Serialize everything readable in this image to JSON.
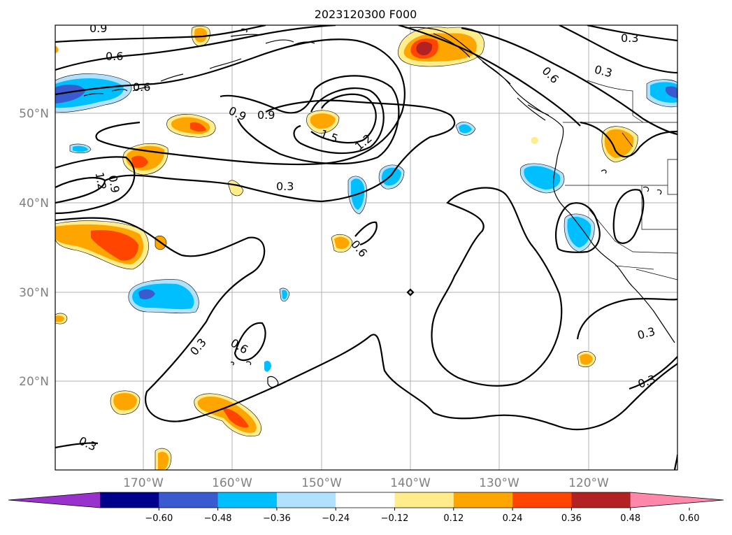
{
  "title": "2023120300 F000",
  "latitude_labels": [
    "20°N",
    "30°N",
    "40°N",
    "50°N"
  ],
  "longitude_labels": [
    "170°W",
    "160°W",
    "150°W",
    "140°W",
    "130°W",
    "120°W"
  ],
  "contour_labels": [
    "0.9",
    "0.6",
    "0.6",
    "0.9",
    "0.9",
    "1.5",
    "1.2",
    "0.9",
    "1.2",
    "0.3",
    "0.6",
    "0.3",
    "0.6",
    "0.3",
    "0.3",
    "0.6",
    "0.3",
    "0.3",
    "0.3"
  ],
  "colorbar": {
    "tick_labels": [
      "−0.60",
      "−0.48",
      "−0.36",
      "−0.24",
      "−0.12",
      "0.12",
      "0.24",
      "0.36",
      "0.48",
      "0.60"
    ],
    "colors": [
      "#9932cc",
      "#00008b",
      "#3a5bcf",
      "#00bfff",
      "#b0e2ff",
      "#ffffff",
      "#ffec8b",
      "#ffa500",
      "#ff4500",
      "#b22222",
      "#ff88aa"
    ]
  }
}
